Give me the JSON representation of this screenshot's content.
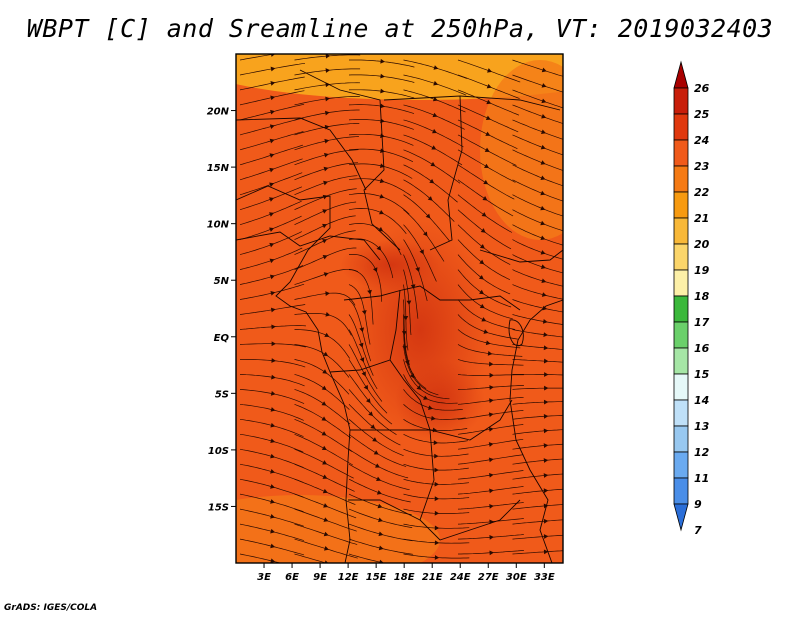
{
  "title": "WBPT [C] and Sreamline at 250hPa, VT: 2019032403",
  "credit": "GrADS: IGES/COLA",
  "map": {
    "lon_range": [
      0,
      35
    ],
    "lat_range": [
      -20,
      25
    ],
    "lon_ticks": [
      "3E",
      "6E",
      "9E",
      "12E",
      "15E",
      "18E",
      "21E",
      "24E",
      "27E",
      "30E",
      "33E"
    ],
    "lat_ticks": [
      "20N",
      "15N",
      "10N",
      "5N",
      "EQ",
      "5S",
      "10S",
      "15S"
    ],
    "field_colors": {
      "base": "#f05a1a",
      "warm_core": "#d83810",
      "cool_band": "#f7a014",
      "cool_north": "#f9b01e"
    }
  },
  "colorbar": {
    "labels": [
      "26",
      "25",
      "24",
      "23",
      "22",
      "21",
      "20",
      "19",
      "18",
      "17",
      "16",
      "15",
      "14",
      "13",
      "12",
      "11",
      "9",
      "7"
    ],
    "colors": [
      "#a80000",
      "#c81e0a",
      "#e0380e",
      "#f05a1a",
      "#f57a14",
      "#f79a10",
      "#f8b838",
      "#fbd56a",
      "#fdf0a8",
      "#3bb83b",
      "#6ad06a",
      "#a6e6a6",
      "#e6f8f8",
      "#bfe0f8",
      "#98c8f0",
      "#6aaaf0",
      "#4a8ee8",
      "#2a6ed8"
    ]
  }
}
